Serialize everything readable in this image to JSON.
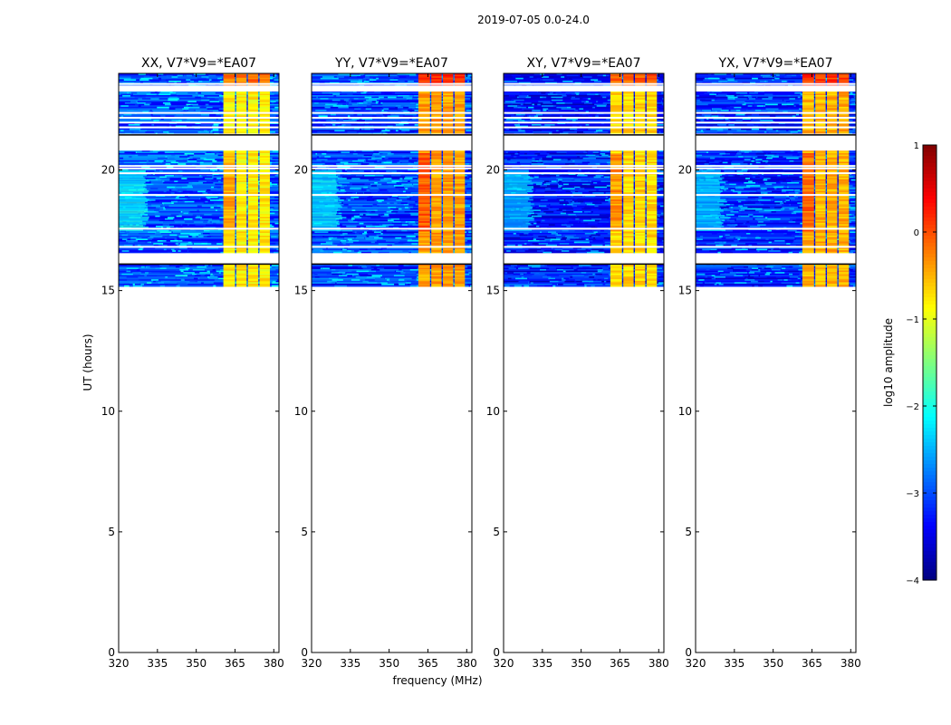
{
  "figure_title": "2019-07-05 0.0-24.0",
  "chart_data": {
    "type": "heatmap",
    "title": "2019-07-05 0.0-24.0",
    "xlabel": "frequency (MHz)",
    "ylabel": "UT (hours)",
    "xlim": [
      320,
      382
    ],
    "ylim": [
      0,
      24
    ],
    "xticks": [
      320,
      335,
      350,
      365,
      380
    ],
    "yticks": [
      0,
      5,
      10,
      15,
      20
    ],
    "colorbar": {
      "label": "log10 amplitude",
      "range": [
        -4,
        1
      ],
      "ticks": [
        -4,
        -3,
        -2,
        -1,
        0,
        1
      ],
      "colormap": "jet",
      "colors": [
        "#00007f",
        "#0000ff",
        "#007fff",
        "#00ffff",
        "#7fff7f",
        "#ffff00",
        "#ff7f00",
        "#ff0000",
        "#7f0000"
      ]
    },
    "data_ut_range": [
      15.2,
      24.0
    ],
    "flagged_ut_rows": [
      21.5,
      21.8,
      22.0,
      22.2,
      22.4,
      23.4,
      23.6,
      16.5,
      16.85,
      17.6,
      19.0,
      19.9,
      20.1,
      20.2
    ],
    "bright_channel_blocks_mhz": [
      [
        360.5,
        365
      ],
      [
        365.5,
        369.5
      ],
      [
        370,
        374
      ],
      [
        374.5,
        378.5
      ]
    ],
    "panels": [
      {
        "title": "XX, V7*V9=*EA07",
        "band_offset_mhz": 0,
        "background_level": -3.0,
        "block_level": -0.8
      },
      {
        "title": "YY, V7*V9=*EA07",
        "band_offset_mhz": 0.8,
        "background_level": -3.1,
        "block_level": -0.4
      },
      {
        "title": "XY, V7*V9=*EA07",
        "band_offset_mhz": 0.8,
        "background_level": -3.3,
        "block_level": -0.7
      },
      {
        "title": "YX, V7*V9=*EA07",
        "band_offset_mhz": 0.8,
        "background_level": -3.2,
        "block_level": -0.5
      }
    ]
  }
}
